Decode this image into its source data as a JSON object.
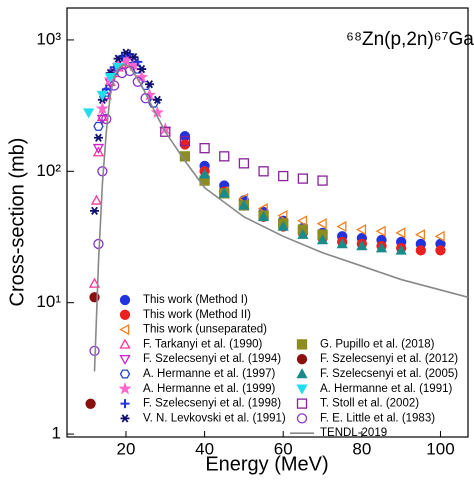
{
  "chart_data": {
    "type": "scatter",
    "title": "⁶⁸Zn(p,2n)⁶⁷Ga",
    "xlabel": "Energy (MeV)",
    "ylabel": "Cross-section (mb)",
    "xlim": [
      5,
      107
    ],
    "xticks": [
      20,
      40,
      60,
      80,
      100
    ],
    "ylim": [
      0.95,
      1750
    ],
    "log_y": true,
    "yticks": [
      1,
      {
        "value": 10,
        "label": "10¹"
      },
      {
        "value": 100,
        "label": "10²"
      },
      {
        "value": 1000,
        "label": "10³"
      }
    ],
    "series": [
      {
        "name": "This work (Method I)",
        "color": "#2233dd",
        "marker": "circle",
        "filled": true,
        "x": [
          35,
          40,
          45,
          50,
          55,
          60,
          65,
          70,
          75,
          80,
          85,
          90,
          95,
          100
        ],
        "values": [
          185,
          110,
          78,
          60,
          49,
          42,
          37,
          34,
          32,
          31,
          30,
          29,
          28,
          28
        ]
      },
      {
        "name": "This work (Method II)",
        "color": "#e82020",
        "marker": "circle",
        "filled": true,
        "x": [
          35,
          40,
          45,
          50,
          55,
          60,
          65,
          70,
          75,
          80,
          85,
          90,
          95,
          100
        ],
        "values": [
          160,
          100,
          70,
          55,
          45,
          38,
          34,
          31,
          29,
          28,
          27,
          26,
          25,
          25
        ]
      },
      {
        "name": "This work (unseparated)",
        "color": "#f08020",
        "marker": "tri-left",
        "filled": false,
        "x": [
          40,
          45,
          50,
          55,
          60,
          65,
          70,
          75,
          80,
          85,
          90,
          95,
          100
        ],
        "values": [
          88,
          70,
          62,
          52,
          46,
          42,
          40,
          38,
          36,
          35,
          34,
          33,
          32
        ]
      },
      {
        "name": "F. Tarkanyi et al. (1990)",
        "color": "#ff3399",
        "marker": "tri-up",
        "filled": false,
        "x": [
          12,
          12.5,
          13,
          14,
          15,
          16,
          17,
          18,
          19,
          20
        ],
        "values": [
          14,
          60,
          140,
          260,
          380,
          480,
          560,
          620,
          650,
          660
        ]
      },
      {
        "name": "F. Szelecsenyi et al. (1994)",
        "color": "#cc22cc",
        "marker": "tri-down",
        "filled": false,
        "x": [
          13,
          14,
          15,
          16,
          17,
          18,
          19,
          20,
          21
        ],
        "values": [
          150,
          250,
          370,
          470,
          560,
          620,
          680,
          700,
          690
        ]
      },
      {
        "name": "A. Hermanne et al. (1997)",
        "color": "#2244cc",
        "marker": "hexagon",
        "filled": false,
        "x": [
          13,
          15,
          17,
          19,
          21,
          23,
          25,
          27
        ],
        "values": [
          220,
          400,
          580,
          700,
          720,
          600,
          450,
          330
        ]
      },
      {
        "name": "A. Hermanne et al. (1999)",
        "color": "#ff66cc",
        "marker": "star",
        "filled": true,
        "x": [
          14,
          16,
          18,
          20,
          22,
          24,
          26,
          28,
          30
        ],
        "values": [
          300,
          500,
          640,
          700,
          640,
          520,
          380,
          280,
          210
        ]
      },
      {
        "name": "F. Szelecsenyi et al. (1998)",
        "color": "#2233dd",
        "marker": "plus",
        "filled": true,
        "x": [
          15,
          17,
          19,
          21,
          23
        ],
        "values": [
          420,
          620,
          750,
          780,
          680
        ]
      },
      {
        "name": "V. N. Levkovski et al. (1991)",
        "color": "#101070",
        "marker": "asterisk",
        "filled": true,
        "x": [
          12,
          13,
          14,
          16,
          18,
          20,
          22,
          24,
          26,
          28
        ],
        "values": [
          50,
          180,
          350,
          560,
          720,
          800,
          740,
          600,
          460,
          350
        ]
      },
      {
        "name": "G. Pupillo et al. (2018)",
        "color": "#8c8c20",
        "marker": "square",
        "filled": true,
        "x": [
          35,
          40,
          45,
          50,
          55,
          60,
          65,
          70
        ],
        "values": [
          130,
          85,
          68,
          55,
          46,
          40,
          36,
          33
        ]
      },
      {
        "name": "F. Szelecsenyi et al. (2012)",
        "color": "#8b1010",
        "marker": "circle",
        "filled": true,
        "x": [
          11,
          12
        ],
        "values": [
          1.7,
          11
        ]
      },
      {
        "name": "F. Szelecsenyi et al. (2005)",
        "color": "#1a8a8a",
        "marker": "tri-up",
        "filled": true,
        "x": [
          40,
          45,
          50,
          55,
          60,
          65,
          70,
          75,
          80,
          85,
          90
        ],
        "values": [
          95,
          68,
          55,
          45,
          38,
          33,
          30,
          28,
          27,
          26,
          25
        ]
      },
      {
        "name": "A. Hermanne et al. (1991)",
        "color": "#22ddee",
        "marker": "tri-down",
        "filled": true,
        "x": [
          10.5,
          14,
          16,
          18
        ],
        "values": [
          280,
          380,
          520,
          620
        ]
      },
      {
        "name": "T. Stoll et al. (2002)",
        "color": "#882299",
        "marker": "square",
        "filled": false,
        "x": [
          30,
          35,
          40,
          45,
          50,
          55,
          60,
          65,
          70
        ],
        "values": [
          200,
          170,
          150,
          130,
          115,
          100,
          92,
          88,
          85
        ]
      },
      {
        "name": "F. E. Little et al. (1983)",
        "color": "#8833cc",
        "marker": "circle",
        "filled": false,
        "x": [
          12,
          13,
          14,
          15,
          17,
          19,
          21,
          23,
          25
        ],
        "values": [
          4.3,
          28,
          100,
          250,
          450,
          560,
          580,
          480,
          360
        ]
      },
      {
        "name": "TENDL-2019",
        "color": "#888888",
        "marker": "line",
        "filled": false,
        "x": [
          12,
          13,
          14,
          15,
          16,
          17,
          18,
          19,
          20,
          21,
          22,
          24,
          26,
          28,
          30,
          35,
          40,
          50,
          60,
          70,
          80,
          90,
          100,
          107
        ],
        "values": [
          3,
          20,
          80,
          200,
          380,
          520,
          600,
          640,
          650,
          620,
          560,
          450,
          340,
          260,
          200,
          120,
          75,
          45,
          32,
          24,
          19,
          15,
          12.5,
          11
        ]
      }
    ]
  }
}
